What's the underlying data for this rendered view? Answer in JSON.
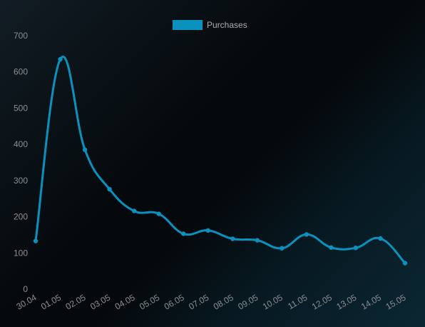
{
  "chart_data": {
    "type": "line",
    "categories": [
      "30.04",
      "01.05",
      "02.05",
      "03.05",
      "04.05",
      "05.05",
      "06.05",
      "07.05",
      "08.05",
      "09.05",
      "10.05",
      "11.05",
      "12.05",
      "13.05",
      "14.05",
      "15.05"
    ],
    "series": [
      {
        "name": "Purchases",
        "values": [
          133,
          635,
          385,
          276,
          216,
          208,
          153,
          162,
          139,
          135,
          113,
          151,
          115,
          114,
          140,
          72
        ],
        "color": "#0a91be"
      }
    ],
    "ylim": [
      0,
      700
    ],
    "yticks": [
      0,
      100,
      200,
      300,
      400,
      500,
      600,
      700
    ],
    "grid": false,
    "legend_position": "top-center",
    "title": "",
    "xlabel": "",
    "ylabel": ""
  }
}
